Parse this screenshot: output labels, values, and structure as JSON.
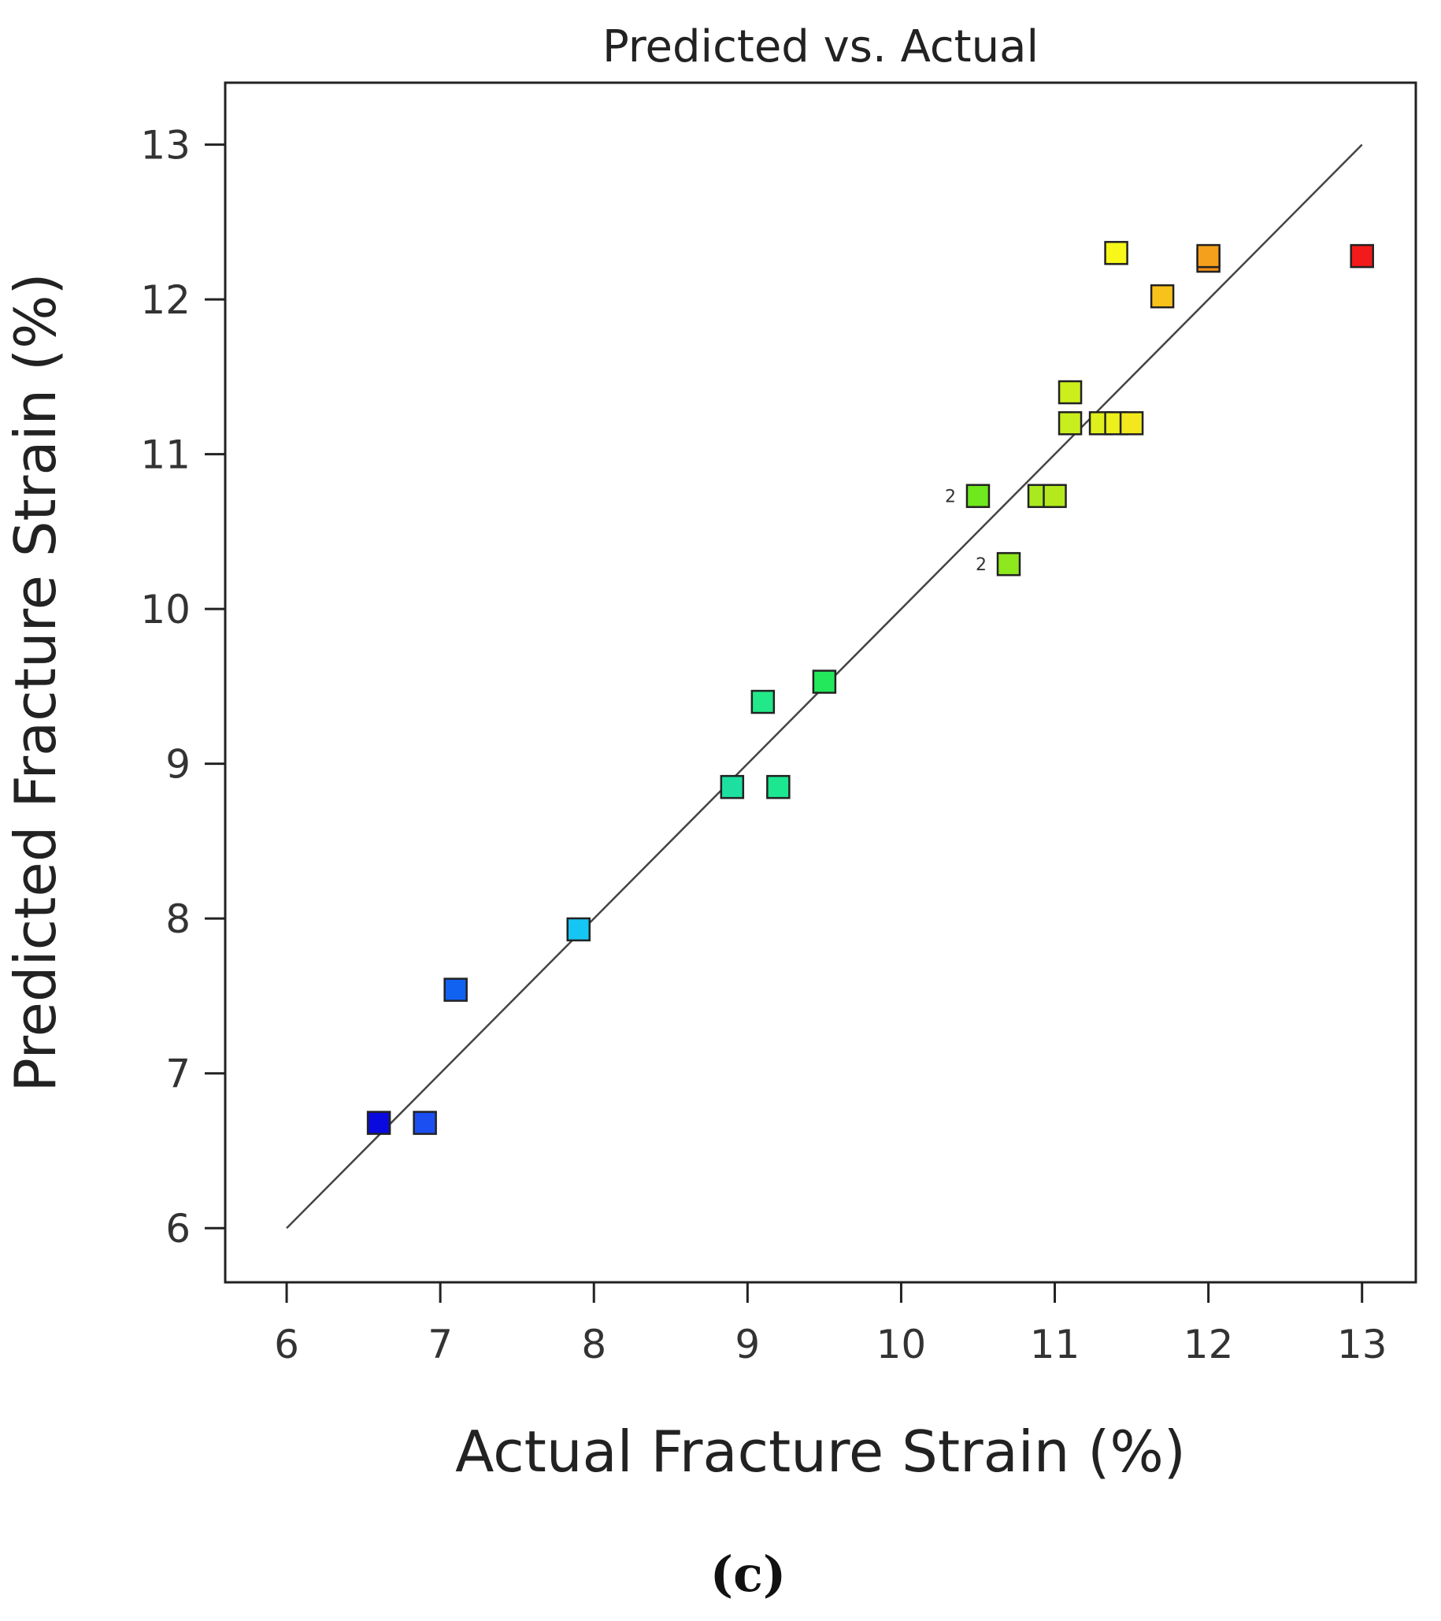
{
  "chart_data": {
    "type": "scatter",
    "title": "Predicted vs. Actual",
    "xlabel": "Actual Fracture Strain (%)",
    "ylabel": "Predicted Fracture Strain (%)",
    "xlim": [
      5.6,
      13.35
    ],
    "ylim": [
      5.65,
      13.4
    ],
    "xticks": [
      "6",
      "7",
      "8",
      "9",
      "10",
      "11",
      "12",
      "13"
    ],
    "yticks": [
      "6",
      "7",
      "8",
      "9",
      "10",
      "11",
      "12",
      "13"
    ],
    "reference_line": {
      "from": [
        6,
        6
      ],
      "to": [
        13,
        13
      ]
    },
    "points": [
      {
        "x": 6.6,
        "y": 6.68,
        "color": "#0a0ae0"
      },
      {
        "x": 6.9,
        "y": 6.68,
        "color": "#1c4ff2"
      },
      {
        "x": 7.1,
        "y": 7.54,
        "color": "#1262f2"
      },
      {
        "x": 7.9,
        "y": 7.93,
        "color": "#16c6f2"
      },
      {
        "x": 8.9,
        "y": 8.85,
        "color": "#1de0a0"
      },
      {
        "x": 9.2,
        "y": 8.85,
        "color": "#1de690"
      },
      {
        "x": 9.1,
        "y": 9.4,
        "color": "#22e88a"
      },
      {
        "x": 9.5,
        "y": 9.53,
        "color": "#23e85c"
      },
      {
        "x": 10.7,
        "y": 10.29,
        "color": "#8de81d",
        "count": "2"
      },
      {
        "x": 10.5,
        "y": 10.73,
        "color": "#6fe81d",
        "count": "2"
      },
      {
        "x": 10.9,
        "y": 10.73,
        "color": "#a8ea1d"
      },
      {
        "x": 11.0,
        "y": 10.73,
        "color": "#b4ea1d"
      },
      {
        "x": 11.1,
        "y": 11.2,
        "color": "#c8ee1d"
      },
      {
        "x": 11.3,
        "y": 11.2,
        "color": "#e0f01d"
      },
      {
        "x": 11.4,
        "y": 11.2,
        "color": "#ecf01d"
      },
      {
        "x": 11.5,
        "y": 11.2,
        "color": "#f2e81d"
      },
      {
        "x": 11.1,
        "y": 11.4,
        "color": "#cdee1d"
      },
      {
        "x": 11.4,
        "y": 12.3,
        "color": "#f7f71a"
      },
      {
        "x": 11.7,
        "y": 12.02,
        "color": "#f7c21a"
      },
      {
        "x": 12.0,
        "y": 12.25,
        "color": "#f28e1a"
      },
      {
        "x": 12.0,
        "y": 12.28,
        "color": "#f5a01c"
      },
      {
        "x": 13.0,
        "y": 12.28,
        "color": "#f21a1a"
      }
    ]
  },
  "panel_label": "(c)"
}
